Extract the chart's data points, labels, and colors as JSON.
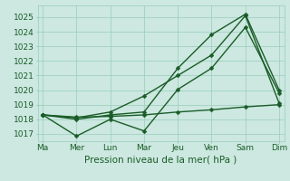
{
  "background_color": "#cce8e0",
  "grid_color": "#99ccbb",
  "line_color": "#1a5c28",
  "title": "",
  "xlabel": "Pression niveau de la mer( hPa )",
  "ylim": [
    1016.5,
    1025.8
  ],
  "yticks": [
    1017,
    1018,
    1019,
    1020,
    1021,
    1022,
    1023,
    1024,
    1025
  ],
  "xtick_labels": [
    "Ma",
    "Mer",
    "Lun",
    "Mar",
    "Jeu",
    "Ven",
    "Sam",
    "Dim"
  ],
  "xtick_positions": [
    0,
    1,
    2,
    3,
    4,
    5,
    6,
    7
  ],
  "line1_x": [
    0,
    1,
    2,
    3,
    4,
    5,
    6,
    7
  ],
  "line1_y": [
    1018.3,
    1016.85,
    1018.0,
    1017.2,
    1020.05,
    1021.5,
    1024.3,
    1019.8
  ],
  "line2_x": [
    0,
    1,
    2,
    3,
    4,
    5,
    6,
    7
  ],
  "line2_y": [
    1018.3,
    1018.0,
    1018.3,
    1018.5,
    1021.5,
    1023.8,
    1025.2,
    1020.0
  ],
  "line3_x": [
    0,
    1,
    2,
    3,
    4,
    5,
    6,
    7
  ],
  "line3_y": [
    1018.3,
    1018.1,
    1018.5,
    1019.6,
    1021.0,
    1022.4,
    1025.1,
    1019.1
  ],
  "line4_x": [
    0,
    1,
    2,
    3,
    4,
    5,
    6,
    7
  ],
  "line4_y": [
    1018.3,
    1018.15,
    1018.2,
    1018.3,
    1018.5,
    1018.65,
    1018.85,
    1019.0
  ],
  "xlim": [
    -0.15,
    7.15
  ],
  "xlabel_fontsize": 7.5,
  "tick_fontsize": 6.5,
  "line_width": 1.0,
  "marker_size": 2.5
}
